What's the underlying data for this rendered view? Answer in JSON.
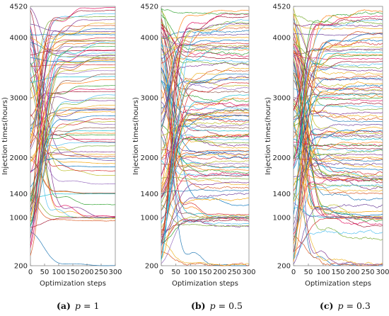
{
  "chart_data": [
    {
      "type": "line",
      "panel_label": "(a)",
      "caption": {
        "label": "(a)",
        "var": "p",
        "eq": "=",
        "value": "1"
      },
      "xlabel": "Optimization steps",
      "ylabel": "Injection times(hours)",
      "xlim": [
        0,
        300
      ],
      "ylim": [
        200,
        4520
      ],
      "xticks": [
        0,
        50,
        100,
        150,
        200,
        250,
        300
      ],
      "yticks": [
        200,
        1000,
        1400,
        2000,
        3000,
        4000,
        4520
      ],
      "series_count": 80,
      "noise": 0.25,
      "approx_final_levels": [
        200,
        950,
        980,
        1000,
        1000,
        1010,
        1020,
        1400,
        1400,
        1410,
        1560,
        1700,
        1780,
        1850,
        1900,
        1950,
        2050,
        2100,
        2200,
        2250,
        2300,
        2380,
        2450,
        2500,
        2550,
        2600,
        2650,
        2700,
        2760,
        2820,
        2880,
        2950,
        3000,
        3050,
        3100,
        3200,
        3300,
        3350,
        3400,
        3500,
        3550,
        3600,
        3650,
        3700,
        3750,
        3800,
        3850,
        3900,
        3950,
        4000,
        4050,
        4100,
        4150,
        4200,
        4250,
        4300,
        4350,
        4400,
        4450,
        4500
      ]
    },
    {
      "type": "line",
      "panel_label": "(b)",
      "caption": {
        "label": "(b)",
        "var": "p",
        "eq": "=",
        "value": "0.5"
      },
      "xlabel": "Optimization steps",
      "ylabel": "Injection times(hours)",
      "xlim": [
        0,
        300
      ],
      "ylim": [
        200,
        4520
      ],
      "xticks": [
        0,
        50,
        100,
        150,
        200,
        250,
        300
      ],
      "yticks": [
        200,
        1000,
        1400,
        2000,
        3000,
        4000,
        4520
      ],
      "series_count": 100,
      "noise": 1.0,
      "approx_final_levels": [
        200,
        210,
        220,
        850,
        900,
        950,
        980,
        1000,
        1000,
        1010,
        1020,
        1050,
        1200,
        1300,
        1400,
        1450,
        1500,
        1550,
        1600,
        1650,
        1700,
        1750,
        1800,
        1850,
        1900,
        1950,
        2000,
        2050,
        2100,
        2150,
        2200,
        2250,
        2300,
        2350,
        2400,
        2450,
        2500,
        2550,
        2600,
        2650,
        2700,
        2750,
        2800,
        2850,
        2900,
        2950,
        3000,
        3050,
        3100,
        3150,
        3200,
        3250,
        3300,
        3350,
        3400,
        3450,
        3500,
        3550,
        3600,
        3650,
        3700,
        3750,
        3800,
        3850,
        3900,
        3950,
        4000,
        4050,
        4100,
        4150,
        4200,
        4250,
        4300,
        4350,
        4400,
        4450
      ]
    },
    {
      "type": "line",
      "panel_label": "(c)",
      "caption": {
        "label": "(c)",
        "var": "p",
        "eq": "=",
        "value": "0.3"
      },
      "xlabel": "Optimization steps",
      "ylabel": "Injection times(hours)",
      "xlim": [
        0,
        300
      ],
      "ylim": [
        200,
        4520
      ],
      "xticks": [
        0,
        50,
        100,
        150,
        200,
        250,
        300
      ],
      "yticks": [
        200,
        1000,
        1400,
        2000,
        3000,
        4000,
        4520
      ],
      "series_count": 100,
      "noise": 1.15,
      "approx_final_levels": [
        200,
        210,
        220,
        230,
        650,
        750,
        850,
        950,
        980,
        1000,
        1000,
        1010,
        1020,
        1050,
        1100,
        1200,
        1300,
        1400,
        1450,
        1500,
        1550,
        1600,
        1650,
        1700,
        1750,
        1800,
        1850,
        1900,
        1950,
        2000,
        2050,
        2100,
        2150,
        2200,
        2250,
        2300,
        2350,
        2400,
        2450,
        2500,
        2550,
        2600,
        2650,
        2700,
        2750,
        2800,
        2850,
        2900,
        2950,
        3000,
        3050,
        3100,
        3150,
        3200,
        3250,
        3300,
        3350,
        3400,
        3450,
        3500,
        3550,
        3600,
        3650,
        3700,
        3750,
        3800,
        3850,
        3900,
        3950,
        4000,
        4050,
        4100,
        4150,
        4200,
        4250,
        4300,
        4350,
        4400,
        4450
      ]
    }
  ],
  "colors": {
    "series_palette": [
      "#1f77b4",
      "#d95319",
      "#edb120",
      "#7e2f8e",
      "#77ac30",
      "#4dbeee",
      "#a2142f",
      "#e0115f",
      "#2ca02c",
      "#ff7f0e",
      "#17becf",
      "#8c564b",
      "#9467bd",
      "#bcbd22",
      "#d62728",
      "#0072bd",
      "#f4a300",
      "#6a3d9a"
    ],
    "axis": "#888888",
    "text": "#222222"
  }
}
